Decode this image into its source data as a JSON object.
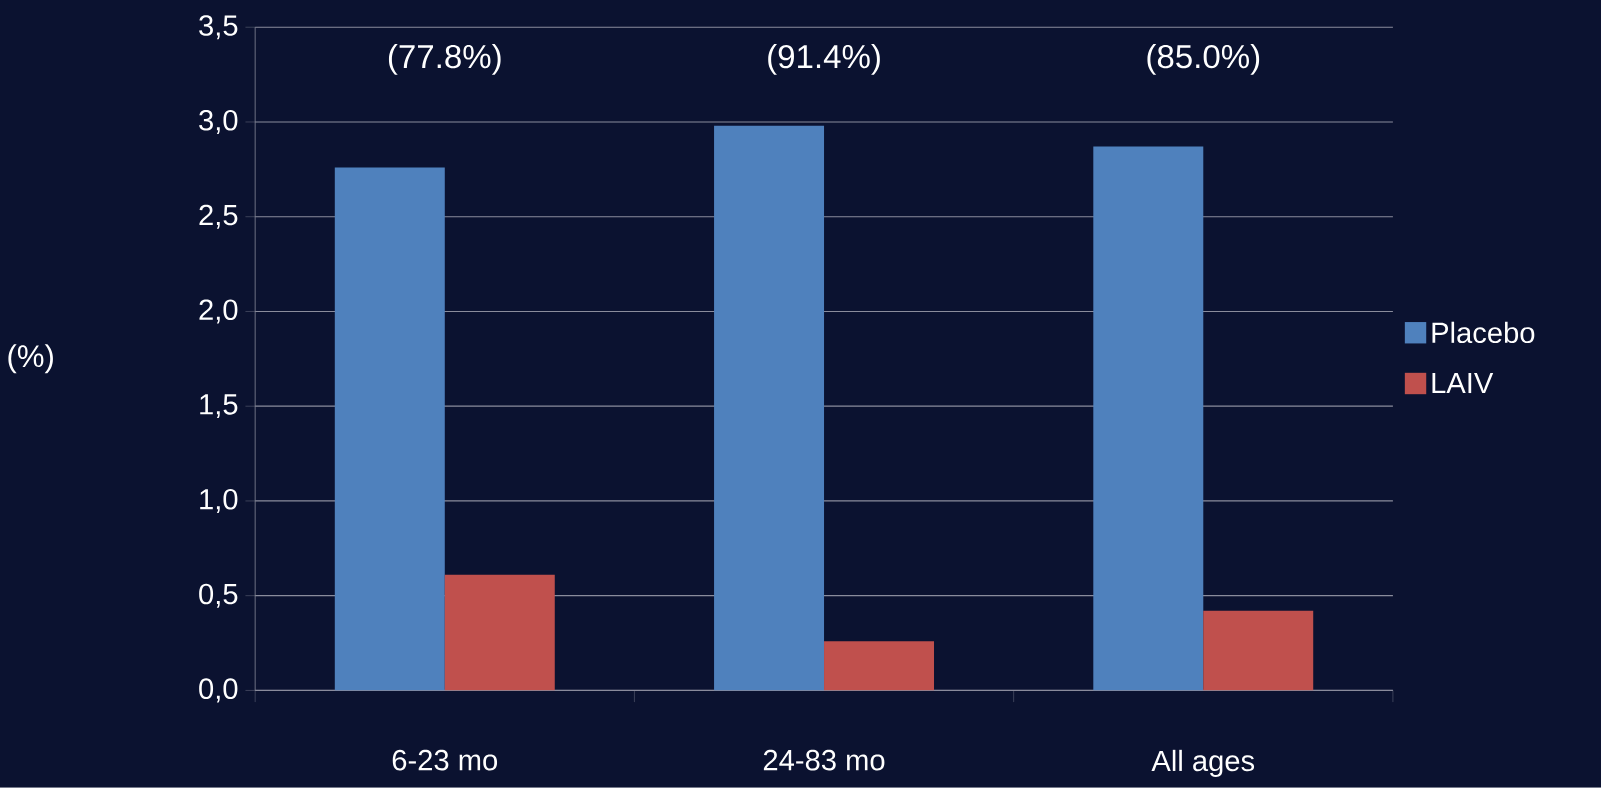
{
  "chart_data": {
    "type": "bar",
    "ylabel": "(%)",
    "categories": [
      "6-23 mo",
      "24-83 mo",
      "All ages"
    ],
    "series": [
      {
        "name": "Placebo",
        "color": "#4f81bd",
        "values": [
          2.76,
          2.98,
          2.87
        ]
      },
      {
        "name": "LAIV",
        "color": "#c0504d",
        "values": [
          0.61,
          0.26,
          0.42
        ]
      }
    ],
    "ylim": [
      0,
      3.5
    ],
    "yticks": [
      {
        "value": 0,
        "label": "0,0"
      },
      {
        "value": 0.5,
        "label": "0,5"
      },
      {
        "value": 1,
        "label": "1,0"
      },
      {
        "value": 1.5,
        "label": "1,5"
      },
      {
        "value": 2,
        "label": "2,0"
      },
      {
        "value": 2.5,
        "label": "2,5"
      },
      {
        "value": 3,
        "label": "3,0"
      },
      {
        "value": 3.5,
        "label": "3,5"
      }
    ],
    "annotations": [
      "(77.8%)",
      "(91.4%)",
      "(85.0%)"
    ],
    "grid": "y",
    "legend": "right"
  }
}
